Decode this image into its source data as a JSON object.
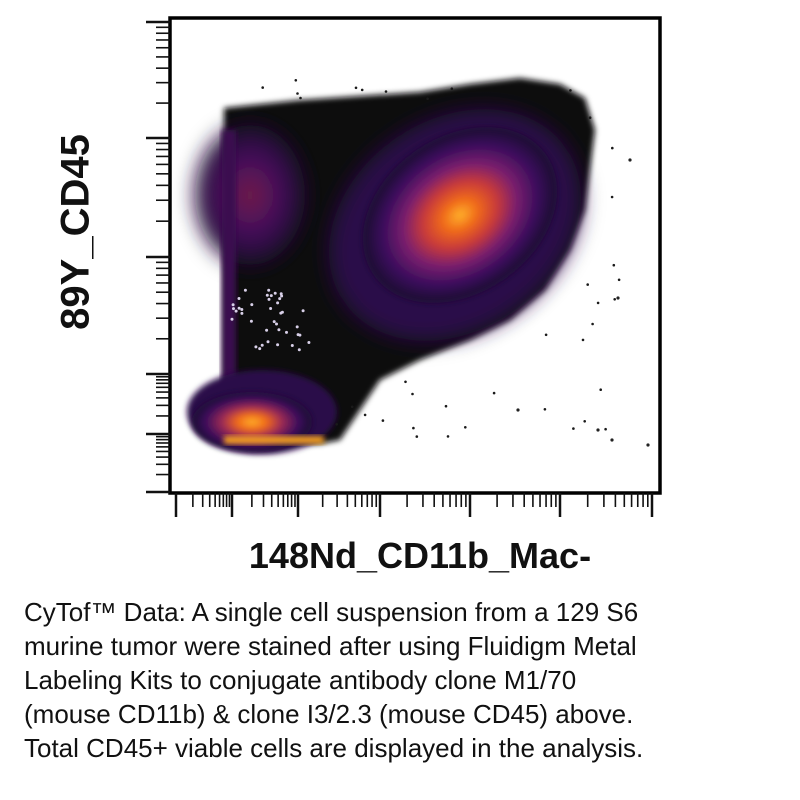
{
  "chart_data": {
    "type": "heatmap",
    "title": "",
    "xlabel": "148Nd_CD11b_Mac-",
    "ylabel": "89Y_CD45",
    "x_scale": "log",
    "y_scale": "log",
    "grid": false,
    "legend": "none",
    "colormap": [
      "#1a0a2e",
      "#3a0d5c",
      "#7a1f6e",
      "#c83a3a",
      "#f06a1a",
      "#ffb12a"
    ],
    "populations": [
      {
        "name": "",
        "cx": 0.56,
        "cy": 0.73,
        "spread_x": 0.15,
        "spread_y": 0.13,
        "density": 1.0
      },
      {
        "name": "",
        "cx": 0.06,
        "cy": 0.08,
        "spread_x": 0.12,
        "spread_y": 0.06,
        "density": 0.9
      },
      {
        "name": "",
        "cx": 0.05,
        "cy": 0.68,
        "spread_x": 0.07,
        "spread_y": 0.1,
        "density": 0.55
      }
    ]
  },
  "caption": {
    "lines": [
      "CyTof™ Data: A single cell suspension from a 129 S6",
      "murine tumor were stained after using Fluidigm Metal",
      "Labeling Kits to conjugate antibody clone M1/70",
      "(mouse CD11b) & clone I3/2.3 (mouse CD45) above.",
      "Total CD45+ viable cells are displayed in the analysis."
    ]
  }
}
